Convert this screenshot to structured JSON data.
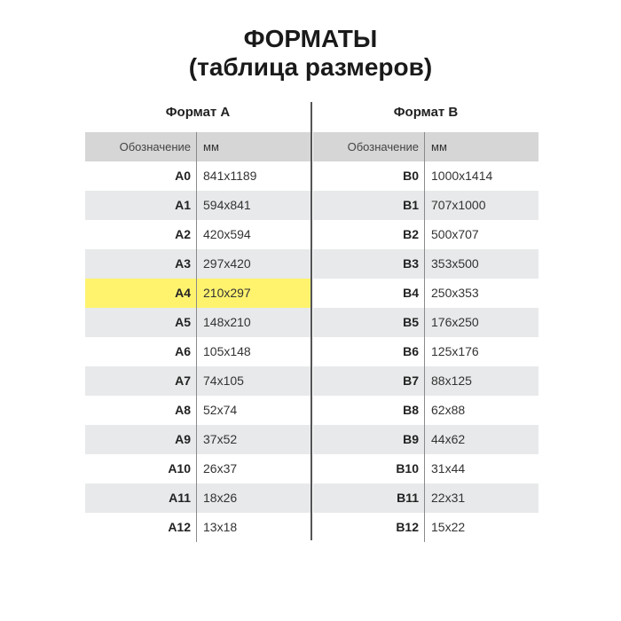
{
  "title_line1": "ФОРМАТЫ",
  "title_line2": "(таблица размеров)",
  "colors": {
    "highlight": "#fff36e",
    "header_bg": "#d6d6d6",
    "alt_row": "#e7e9ea"
  },
  "tables": [
    {
      "caption": "Формат А",
      "col_code": "Обозначение",
      "col_mm": "мм",
      "highlight_row": 4,
      "rows": [
        [
          "A0",
          "841x1189"
        ],
        [
          "A1",
          "594x841"
        ],
        [
          "A2",
          "420x594"
        ],
        [
          "A3",
          "297x420"
        ],
        [
          "A4",
          "210x297"
        ],
        [
          "A5",
          "148x210"
        ],
        [
          "A6",
          "105x148"
        ],
        [
          "A7",
          "74x105"
        ],
        [
          "A8",
          "52x74"
        ],
        [
          "A9",
          "37x52"
        ],
        [
          "A10",
          "26x37"
        ],
        [
          "A11",
          "18x26"
        ],
        [
          "A12",
          "13x18"
        ]
      ]
    },
    {
      "caption": "Формат В",
      "col_code": "Обозначение",
      "col_mm": "мм",
      "highlight_row": -1,
      "rows": [
        [
          "B0",
          "1000x1414"
        ],
        [
          "B1",
          "707x1000"
        ],
        [
          "B2",
          "500x707"
        ],
        [
          "B3",
          "353x500"
        ],
        [
          "B4",
          "250x353"
        ],
        [
          "B5",
          "176x250"
        ],
        [
          "B6",
          "125x176"
        ],
        [
          "B7",
          "88x125"
        ],
        [
          "B8",
          "62x88"
        ],
        [
          "B9",
          "44x62"
        ],
        [
          "B10",
          "31x44"
        ],
        [
          "B11",
          "22x31"
        ],
        [
          "B12",
          "15x22"
        ]
      ]
    }
  ]
}
